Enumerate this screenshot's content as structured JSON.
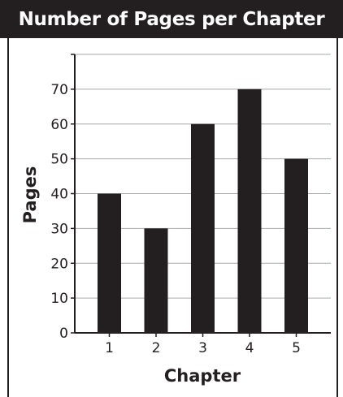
{
  "title": "Number of Pages per Chapter",
  "colors": {
    "bar": "#231f20",
    "grid": "#a7a9ac",
    "axis": "#231f20",
    "title_bg": "#231f20"
  },
  "chart_data": {
    "type": "bar",
    "title": "Number of Pages per Chapter",
    "xlabel": "Chapter",
    "ylabel": "Pages",
    "categories": [
      "1",
      "2",
      "3",
      "4",
      "5"
    ],
    "values": [
      40,
      30,
      60,
      70,
      50
    ],
    "ylim": [
      0,
      80
    ],
    "yticks": [
      0,
      10,
      20,
      30,
      40,
      50,
      60,
      70
    ],
    "grid": true,
    "legend": "none"
  }
}
